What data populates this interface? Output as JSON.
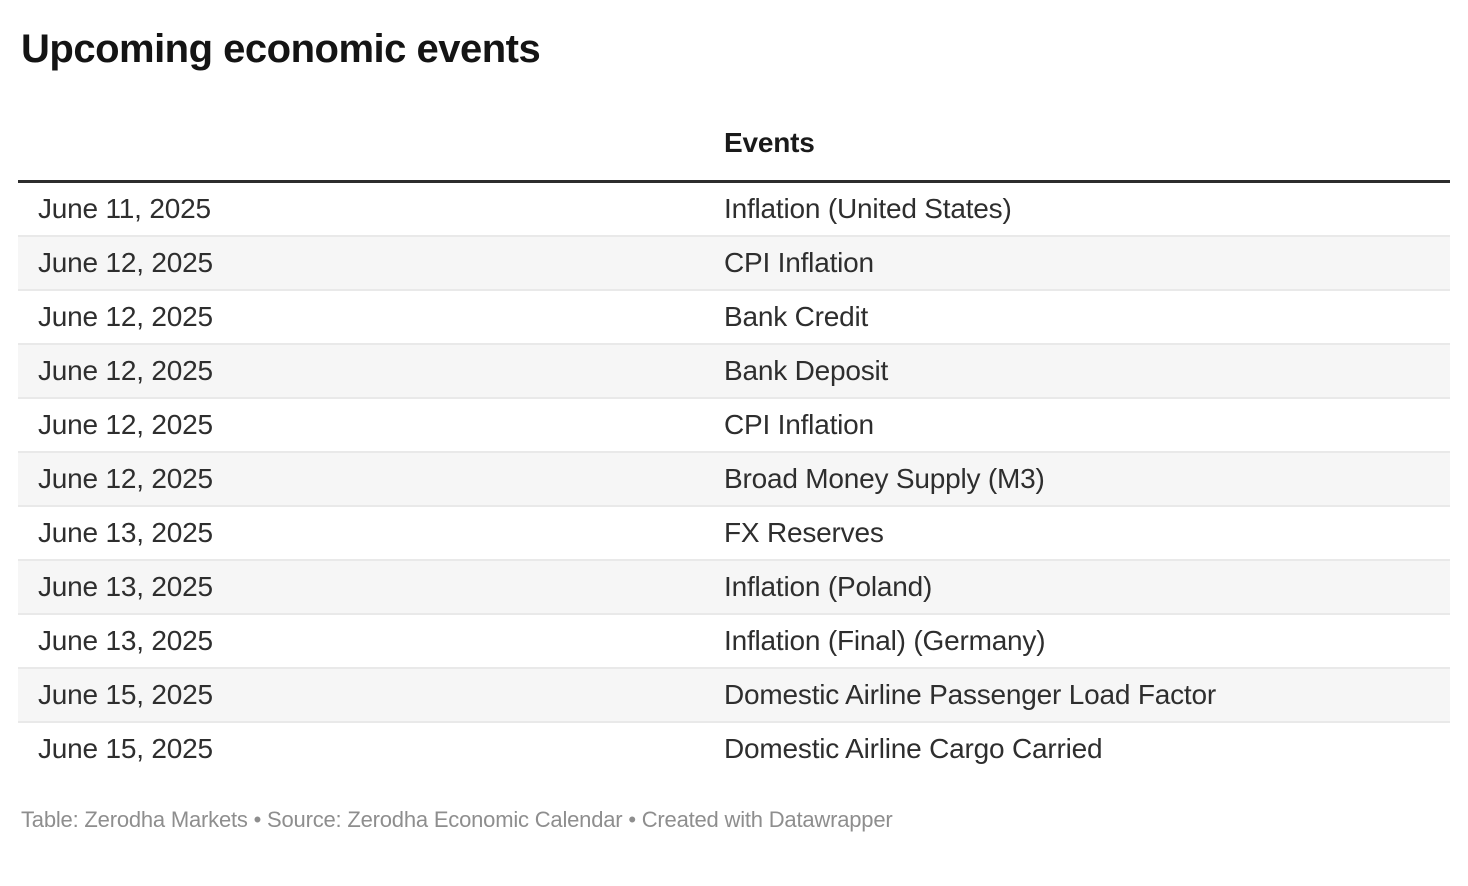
{
  "header": {
    "title": "Upcoming economic events"
  },
  "chart_data": {
    "type": "table",
    "title": "Upcoming economic events",
    "columns": [
      "",
      "Events"
    ],
    "rows": [
      [
        "June 11, 2025",
        "Inflation (United States)"
      ],
      [
        "June 12, 2025",
        "CPI Inflation"
      ],
      [
        "June 12, 2025",
        "Bank Credit"
      ],
      [
        "June 12, 2025",
        "Bank Deposit"
      ],
      [
        "June 12, 2025",
        "CPI Inflation"
      ],
      [
        "June 12, 2025",
        "Broad Money Supply (M3)"
      ],
      [
        "June 13, 2025",
        "FX Reserves"
      ],
      [
        "June 13, 2025",
        "Inflation (Poland)"
      ],
      [
        "June 13, 2025",
        "Inflation (Final) (Germany)"
      ],
      [
        "June 15, 2025",
        "Domestic Airline Passenger Load Factor"
      ],
      [
        "June 15, 2025",
        "Domestic Airline Cargo Carried"
      ]
    ],
    "layout": {
      "striped_rows": true,
      "stripe_on": "even"
    }
  },
  "footer": {
    "text": "Table: Zerodha Markets • Source: Zerodha Economic Calendar • Created with Datawrapper"
  },
  "colors": {
    "background": "#ffffff",
    "title_text": "#141414",
    "body_text": "#2e2e2e",
    "row_stripe": "#f6f6f6",
    "row_separator": "#e9e9e9",
    "header_rule": "#2d2d2d",
    "footer_text": "#8e8e8e"
  }
}
